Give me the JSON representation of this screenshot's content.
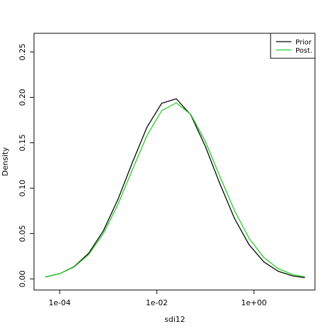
{
  "chart_data": {
    "type": "line",
    "xlabel": "sdi12",
    "ylabel": "Density",
    "xlog": true,
    "xlim": [
      2.96e-05,
      18.07
    ],
    "xticks": [
      {
        "value": 0.0001,
        "label": "1e-04"
      },
      {
        "value": 0.01,
        "label": "1e-02"
      },
      {
        "value": 1,
        "label": "1e+00"
      }
    ],
    "ylim": [
      -0.0122,
      0.2706
    ],
    "yticks": [
      {
        "value": 0,
        "label": "0.00"
      },
      0.05,
      {
        "value": 0.1,
        "label": "0.10"
      },
      0.15,
      {
        "value": 0.2,
        "label": "0.20"
      },
      0.25
    ],
    "legend": "topright",
    "x": [
      5.012e-05,
      0.0001,
      0.0001995,
      0.0003981,
      0.0007943,
      0.001585,
      0.003162,
      0.00631,
      0.01259,
      0.02512,
      0.05012,
      0.1,
      0.1995,
      0.3981,
      0.7943,
      1.585,
      3.162,
      6.31,
      11.22
    ],
    "series": [
      {
        "name": "Prior",
        "color": "#000000",
        "values": [
          0.00215,
          0.00573,
          0.01357,
          0.02846,
          0.053,
          0.0876,
          0.1286,
          0.1674,
          0.1935,
          0.1985,
          0.1807,
          0.146,
          0.1047,
          0.0666,
          0.0377,
          0.0189,
          0.0084,
          0.0033,
          0.0014
        ]
      },
      {
        "name": "Post.",
        "color": "#22cc22",
        "values": [
          0.00221,
          0.00571,
          0.01317,
          0.0271,
          0.0499,
          0.0821,
          0.1206,
          0.1581,
          0.1853,
          0.194,
          0.1812,
          0.1514,
          0.1129,
          0.0753,
          0.0448,
          0.0238,
          0.0113,
          0.0048,
          0.0022
        ]
      }
    ]
  }
}
